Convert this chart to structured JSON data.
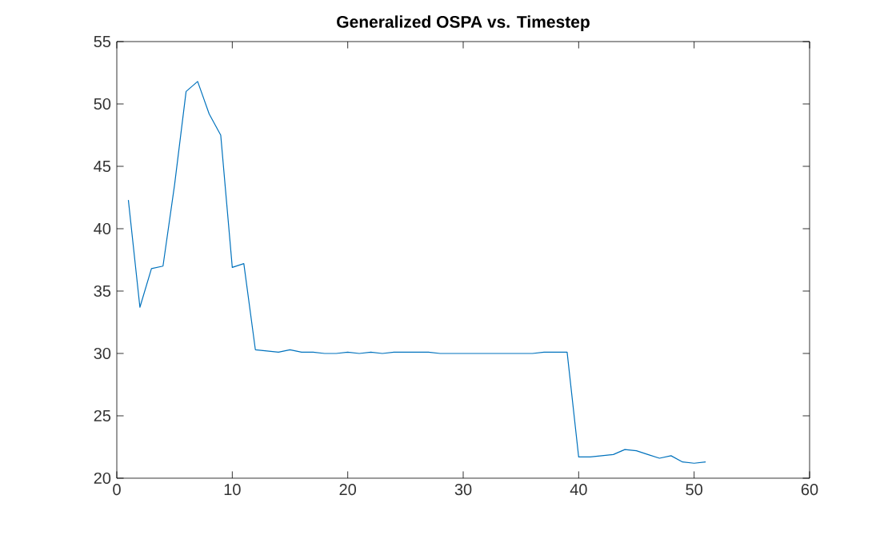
{
  "chart_data": {
    "type": "line",
    "title": "Generalized OSPA vs. Timestep",
    "x": [
      1,
      2,
      3,
      4,
      5,
      6,
      7,
      8,
      9,
      10,
      11,
      12,
      13,
      14,
      15,
      16,
      17,
      18,
      19,
      20,
      21,
      22,
      23,
      24,
      25,
      26,
      27,
      28,
      29,
      30,
      31,
      32,
      33,
      34,
      35,
      36,
      37,
      38,
      39,
      40,
      41,
      42,
      43,
      44,
      45,
      46,
      47,
      48,
      49,
      50,
      51
    ],
    "series": [
      {
        "color": "#0072bd",
        "values": [
          42.3,
          33.7,
          36.8,
          37.0,
          43.5,
          51.0,
          51.8,
          49.2,
          47.5,
          36.9,
          37.2,
          30.3,
          30.2,
          30.1,
          30.3,
          30.1,
          30.1,
          30.0,
          30.0,
          30.1,
          30.0,
          30.1,
          30.0,
          30.1,
          30.1,
          30.1,
          30.1,
          30.0,
          30.0,
          30.0,
          30.0,
          30.0,
          30.0,
          30.0,
          30.0,
          30.0,
          30.1,
          30.1,
          30.1,
          21.7,
          21.7,
          21.8,
          21.9,
          22.3,
          22.2,
          21.9,
          21.6,
          21.8,
          21.3,
          21.2,
          21.3
        ]
      }
    ],
    "xlim": [
      0,
      60
    ],
    "ylim": [
      20,
      55
    ],
    "xticks": [
      0,
      10,
      20,
      30,
      40,
      50,
      60
    ],
    "yticks": [
      20,
      25,
      30,
      35,
      40,
      45,
      50,
      55
    ],
    "grid": false
  }
}
